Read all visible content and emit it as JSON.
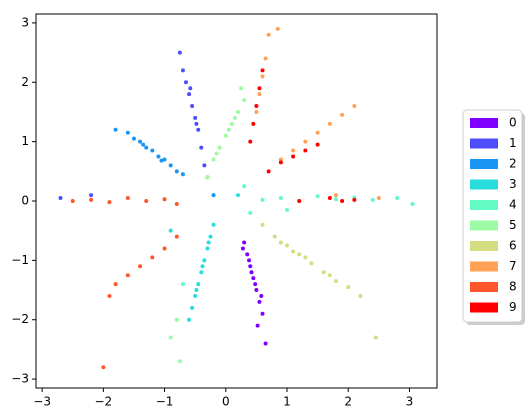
{
  "chart_data": {
    "type": "scatter",
    "legend": "outside right",
    "xlim": [
      -3.1,
      3.45
    ],
    "ylim": [
      -3.15,
      3.15
    ],
    "xticks": [
      {
        "value": -3,
        "label": "−3"
      },
      {
        "value": -2,
        "label": "−2"
      },
      {
        "value": -1,
        "label": "−1"
      },
      0,
      1,
      2,
      3
    ],
    "yticks": [
      {
        "value": -3,
        "label": "−3"
      },
      {
        "value": -2,
        "label": "−2"
      },
      {
        "value": -1,
        "label": "−1"
      },
      0,
      1,
      2,
      3
    ],
    "series": [
      {
        "name": "0",
        "color": "#8000ff",
        "x": [
          0.3,
          0.35,
          0.4,
          0.45,
          0.5,
          0.55,
          0.6,
          0.38,
          0.48,
          0.52,
          0.42,
          0.65,
          0.28,
          0.58
        ],
        "y": [
          -0.7,
          -0.9,
          -1.1,
          -1.3,
          -1.5,
          -1.7,
          -1.9,
          -1.0,
          -1.4,
          -2.1,
          -1.2,
          -2.4,
          -0.8,
          -1.6
        ]
      },
      {
        "name": "1",
        "color": "#4e4dfc",
        "x": [
          -0.35,
          -0.4,
          -0.45,
          -0.5,
          -0.55,
          -0.6,
          -0.65,
          -0.7,
          -0.75,
          -0.48,
          -0.58,
          -2.7,
          -2.2,
          -0.3
        ],
        "y": [
          0.6,
          0.9,
          1.2,
          1.4,
          1.6,
          1.8,
          2.0,
          2.2,
          2.5,
          1.3,
          1.9,
          0.05,
          0.1,
          0.4
        ]
      },
      {
        "name": "2",
        "color": "#1996f3",
        "x": [
          -1.8,
          -1.6,
          -1.5,
          -1.4,
          -1.3,
          -1.2,
          -1.1,
          -1.0,
          -0.9,
          -0.8,
          -0.7,
          -1.35,
          -1.05,
          -0.2
        ],
        "y": [
          1.2,
          1.15,
          1.05,
          1.0,
          0.9,
          0.85,
          0.75,
          0.7,
          0.6,
          0.5,
          0.45,
          0.95,
          0.68,
          0.1
        ]
      },
      {
        "name": "3",
        "color": "#2adddd",
        "x": [
          -0.2,
          -0.25,
          -0.3,
          -0.35,
          -0.4,
          -0.45,
          -0.5,
          -0.55,
          -0.6,
          -0.38,
          -0.48,
          0.2,
          -0.9,
          -0.28
        ],
        "y": [
          -0.4,
          -0.6,
          -0.8,
          -1.0,
          -1.2,
          -1.4,
          -1.6,
          -1.8,
          -2.0,
          -1.1,
          -1.5,
          0.1,
          -0.5,
          -0.7
        ]
      },
      {
        "name": "4",
        "color": "#62fbc4",
        "x": [
          0.6,
          0.9,
          1.2,
          1.5,
          1.8,
          2.1,
          2.4,
          2.8,
          3.05,
          0.3,
          -0.7,
          -0.8,
          1.0,
          0.4
        ],
        "y": [
          0.02,
          0.05,
          0.0,
          0.08,
          0.03,
          0.06,
          0.02,
          0.05,
          -0.05,
          0.25,
          -1.4,
          -2.0,
          -0.15,
          -0.2
        ]
      },
      {
        "name": "5",
        "color": "#9cfba4",
        "x": [
          -0.2,
          -0.1,
          0.0,
          0.1,
          0.2,
          0.3,
          -0.15,
          0.05,
          0.15,
          -0.9,
          -0.8,
          -0.75,
          -0.3,
          0.25
        ],
        "y": [
          0.7,
          0.9,
          1.1,
          1.3,
          1.5,
          1.7,
          0.8,
          1.2,
          1.4,
          -2.3,
          -2.0,
          -2.7,
          0.4,
          1.9
        ]
      },
      {
        "name": "6",
        "color": "#d4dd80",
        "x": [
          0.6,
          0.8,
          1.0,
          1.2,
          1.4,
          1.6,
          1.8,
          2.0,
          2.2,
          1.3,
          1.7,
          1.1,
          2.45,
          0.9
        ],
        "y": [
          -0.4,
          -0.6,
          -0.75,
          -0.9,
          -1.05,
          -1.2,
          -1.35,
          -1.45,
          -1.6,
          -0.95,
          -1.25,
          -0.85,
          -2.3,
          -0.7
        ]
      },
      {
        "name": "7",
        "color": "#ffa256",
        "x": [
          0.5,
          0.55,
          0.6,
          0.65,
          0.7,
          0.9,
          1.1,
          1.3,
          1.5,
          1.7,
          1.9,
          2.1,
          1.8,
          2.5,
          0.85
        ],
        "y": [
          1.5,
          1.8,
          2.1,
          2.4,
          2.8,
          0.7,
          0.85,
          1.0,
          1.15,
          1.3,
          1.45,
          1.6,
          0.1,
          0.05,
          2.9
        ]
      },
      {
        "name": "8",
        "color": "#ff562c",
        "x": [
          -2.5,
          -2.2,
          -1.9,
          -1.6,
          -1.3,
          -1.0,
          -0.8,
          -1.8,
          -1.6,
          -1.4,
          -1.2,
          -1.0,
          -0.8,
          -1.9,
          -2.0
        ],
        "y": [
          0.0,
          0.02,
          -0.02,
          0.05,
          0.0,
          0.03,
          -0.05,
          -1.4,
          -1.25,
          -1.1,
          -0.95,
          -0.8,
          -0.6,
          -1.6,
          -2.8
        ]
      },
      {
        "name": "9",
        "color": "#ff0000",
        "x": [
          0.4,
          0.45,
          0.5,
          0.55,
          0.7,
          0.9,
          1.1,
          1.3,
          1.5,
          1.7,
          1.9,
          2.1,
          0.6,
          1.2
        ],
        "y": [
          1.0,
          1.3,
          1.6,
          1.9,
          0.5,
          0.65,
          0.75,
          0.85,
          0.95,
          0.05,
          0.0,
          0.02,
          2.2,
          0.0
        ]
      }
    ]
  }
}
